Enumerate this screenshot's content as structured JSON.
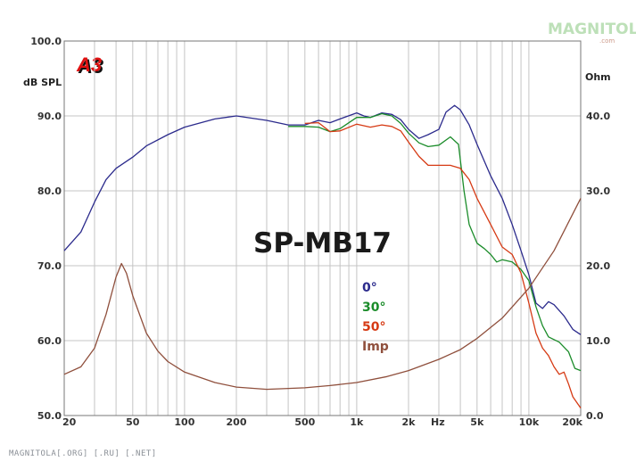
{
  "logo": {
    "text": "A3",
    "color": "#e01010"
  },
  "brand": {
    "text": "MAGNITOLA",
    "sub": ".com",
    "color": "#bde0b8"
  },
  "watermark": "MAGNITOLA[.ORG] [.RU] [.NET]",
  "chart_data": {
    "type": "line",
    "title": "SP-MB17",
    "xscale": "log",
    "xlim": [
      20,
      20000
    ],
    "ylim": [
      50,
      100
    ],
    "y2lim": [
      0,
      50
    ],
    "ylabel": "dB SPL",
    "y2label": "Ohm",
    "xunit": "Hz",
    "xticks": [
      {
        "v": 20,
        "label": "20"
      },
      {
        "v": 50,
        "label": "50"
      },
      {
        "v": 100,
        "label": "100"
      },
      {
        "v": 200,
        "label": "200"
      },
      {
        "v": 500,
        "label": "500"
      },
      {
        "v": 1000,
        "label": "1k"
      },
      {
        "v": 2000,
        "label": "2k"
      },
      {
        "v": 5000,
        "label": "5k"
      },
      {
        "v": 10000,
        "label": "10k"
      },
      {
        "v": 20000,
        "label": "20k"
      }
    ],
    "yticks": [
      "50.0",
      "60.0",
      "70.0",
      "80.0",
      "90.0",
      "100.0"
    ],
    "y2ticks": [
      "0.0",
      "10.0",
      "20.0",
      "30.0",
      "40.0"
    ],
    "grid": true,
    "legend_position": "center-right",
    "series": [
      {
        "name": "0°",
        "axis": "left",
        "color": "#2b2a8c",
        "points": [
          [
            20,
            72.0
          ],
          [
            25,
            74.5
          ],
          [
            30,
            78.5
          ],
          [
            35,
            81.5
          ],
          [
            40,
            83.0
          ],
          [
            50,
            84.5
          ],
          [
            60,
            86.0
          ],
          [
            80,
            87.5
          ],
          [
            100,
            88.5
          ],
          [
            150,
            89.6
          ],
          [
            200,
            90.0
          ],
          [
            300,
            89.4
          ],
          [
            400,
            88.8
          ],
          [
            500,
            88.8
          ],
          [
            600,
            89.4
          ],
          [
            700,
            89.1
          ],
          [
            800,
            89.6
          ],
          [
            1000,
            90.4
          ],
          [
            1100,
            90.0
          ],
          [
            1200,
            89.8
          ],
          [
            1400,
            90.4
          ],
          [
            1600,
            90.2
          ],
          [
            1800,
            89.5
          ],
          [
            2000,
            88.2
          ],
          [
            2300,
            87.0
          ],
          [
            2600,
            87.5
          ],
          [
            3000,
            88.2
          ],
          [
            3300,
            90.5
          ],
          [
            3700,
            91.4
          ],
          [
            4000,
            90.8
          ],
          [
            4500,
            88.8
          ],
          [
            5000,
            86.2
          ],
          [
            6000,
            82.0
          ],
          [
            7000,
            79.0
          ],
          [
            8000,
            75.5
          ],
          [
            9000,
            72.0
          ],
          [
            10000,
            68.8
          ],
          [
            11000,
            65.0
          ],
          [
            12000,
            64.3
          ],
          [
            13000,
            65.2
          ],
          [
            14000,
            64.8
          ],
          [
            16000,
            63.3
          ],
          [
            18000,
            61.5
          ],
          [
            20000,
            60.8
          ]
        ]
      },
      {
        "name": "30°",
        "axis": "left",
        "color": "#1b8c2a",
        "points": [
          [
            400,
            88.6
          ],
          [
            500,
            88.6
          ],
          [
            600,
            88.5
          ],
          [
            700,
            87.9
          ],
          [
            800,
            88.3
          ],
          [
            1000,
            89.8
          ],
          [
            1200,
            89.8
          ],
          [
            1400,
            90.3
          ],
          [
            1600,
            90.0
          ],
          [
            1800,
            89.0
          ],
          [
            2000,
            87.7
          ],
          [
            2300,
            86.4
          ],
          [
            2600,
            85.9
          ],
          [
            3000,
            86.1
          ],
          [
            3500,
            87.2
          ],
          [
            3900,
            86.2
          ],
          [
            4200,
            80.0
          ],
          [
            4500,
            75.5
          ],
          [
            5000,
            73.0
          ],
          [
            5500,
            72.3
          ],
          [
            6000,
            71.5
          ],
          [
            6500,
            70.5
          ],
          [
            7000,
            70.8
          ],
          [
            8000,
            70.5
          ],
          [
            9000,
            69.5
          ],
          [
            10000,
            68.0
          ],
          [
            11000,
            64.5
          ],
          [
            12000,
            62.0
          ],
          [
            13000,
            60.5
          ],
          [
            15000,
            59.8
          ],
          [
            17000,
            58.5
          ],
          [
            18500,
            56.3
          ],
          [
            20000,
            56.0
          ]
        ]
      },
      {
        "name": "50°",
        "axis": "left",
        "color": "#d63a14",
        "points": [
          [
            500,
            89.0
          ],
          [
            600,
            89.1
          ],
          [
            700,
            87.9
          ],
          [
            800,
            88.0
          ],
          [
            1000,
            88.9
          ],
          [
            1200,
            88.5
          ],
          [
            1400,
            88.8
          ],
          [
            1600,
            88.6
          ],
          [
            1800,
            88.0
          ],
          [
            2000,
            86.5
          ],
          [
            2300,
            84.6
          ],
          [
            2600,
            83.4
          ],
          [
            3000,
            83.4
          ],
          [
            3500,
            83.4
          ],
          [
            4000,
            83.0
          ],
          [
            4500,
            81.5
          ],
          [
            5000,
            79.0
          ],
          [
            6000,
            75.5
          ],
          [
            7000,
            72.5
          ],
          [
            8000,
            71.5
          ],
          [
            9000,
            69.0
          ],
          [
            10000,
            65.0
          ],
          [
            11000,
            61.0
          ],
          [
            12000,
            59.0
          ],
          [
            13000,
            58.0
          ],
          [
            14000,
            56.5
          ],
          [
            15000,
            55.5
          ],
          [
            16000,
            55.8
          ],
          [
            17000,
            54.2
          ],
          [
            18000,
            52.5
          ],
          [
            20000,
            51.0
          ]
        ]
      },
      {
        "name": "Imp",
        "axis": "right",
        "color": "#8f4f3c",
        "points": [
          [
            20,
            5.5
          ],
          [
            25,
            6.5
          ],
          [
            30,
            9.0
          ],
          [
            35,
            13.5
          ],
          [
            40,
            18.5
          ],
          [
            43,
            20.3
          ],
          [
            46,
            19.0
          ],
          [
            50,
            16.0
          ],
          [
            60,
            11.0
          ],
          [
            70,
            8.6
          ],
          [
            80,
            7.2
          ],
          [
            100,
            5.8
          ],
          [
            150,
            4.4
          ],
          [
            200,
            3.8
          ],
          [
            300,
            3.5
          ],
          [
            500,
            3.7
          ],
          [
            700,
            4.0
          ],
          [
            1000,
            4.4
          ],
          [
            1500,
            5.2
          ],
          [
            2000,
            6.0
          ],
          [
            3000,
            7.5
          ],
          [
            4000,
            8.8
          ],
          [
            5000,
            10.3
          ],
          [
            7000,
            13.0
          ],
          [
            10000,
            17.0
          ],
          [
            14000,
            22.0
          ],
          [
            20000,
            29.0
          ]
        ]
      }
    ]
  }
}
